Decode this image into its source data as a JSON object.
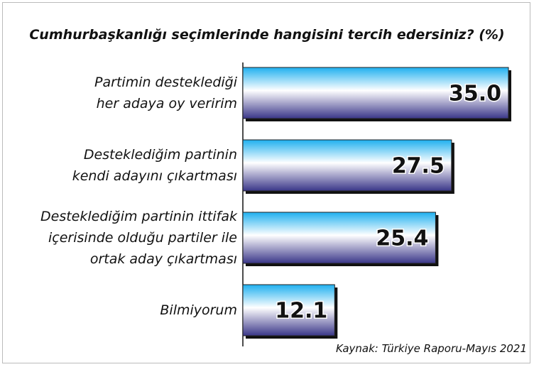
{
  "chart_data": {
    "type": "bar",
    "orientation": "horizontal",
    "title": "Cumhurbaşkanlığı seçimlerinde hangisini tercih edersiniz? (%)",
    "categories": [
      "Partimin desteklediği\nher adaya oy veririm",
      "Desteklediğim partinin\nkendi adayını çıkartması",
      "Desteklediğim partinin ittifak\niçerisinde olduğu partiler ile\nortak aday çıkartması",
      "Bilmiyorum"
    ],
    "values": [
      35.0,
      27.5,
      25.4,
      12.1
    ],
    "value_labels": [
      "35.0",
      "27.5",
      "25.4",
      "12.1"
    ],
    "source": "Kaynak: Türkiye Raporu-Mayıs 2021"
  }
}
